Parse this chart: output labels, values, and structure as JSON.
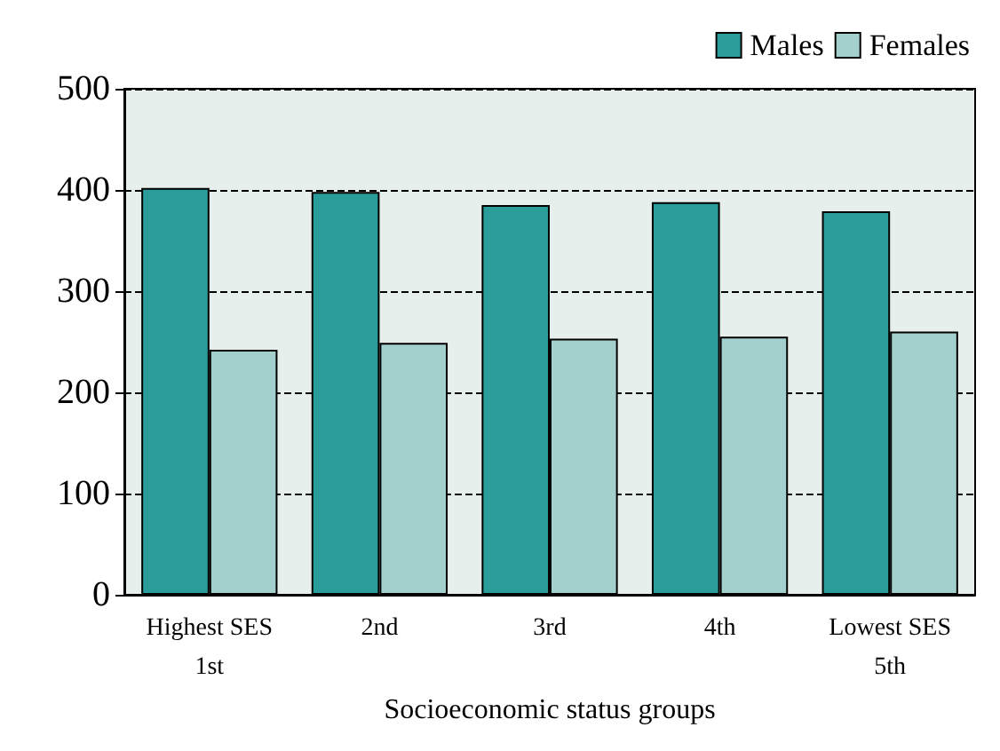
{
  "chart_data": {
    "type": "bar",
    "xlabel": "Socioeconomic status groups",
    "categories": [
      "Highest SES\n1st",
      "2nd",
      "3rd",
      "4th",
      "Lowest SES\n5th"
    ],
    "series": [
      {
        "name": "Males",
        "color": "#2a9d9a",
        "values": [
          402,
          398,
          385,
          388,
          379
        ]
      },
      {
        "name": "Females",
        "color": "#a3cfcd",
        "values": [
          242,
          249,
          253,
          255,
          260
        ]
      }
    ],
    "ylim": [
      0,
      500
    ],
    "yticks": [
      0,
      100,
      200,
      300,
      400,
      500
    ],
    "grid": "y",
    "legend": "top right"
  }
}
